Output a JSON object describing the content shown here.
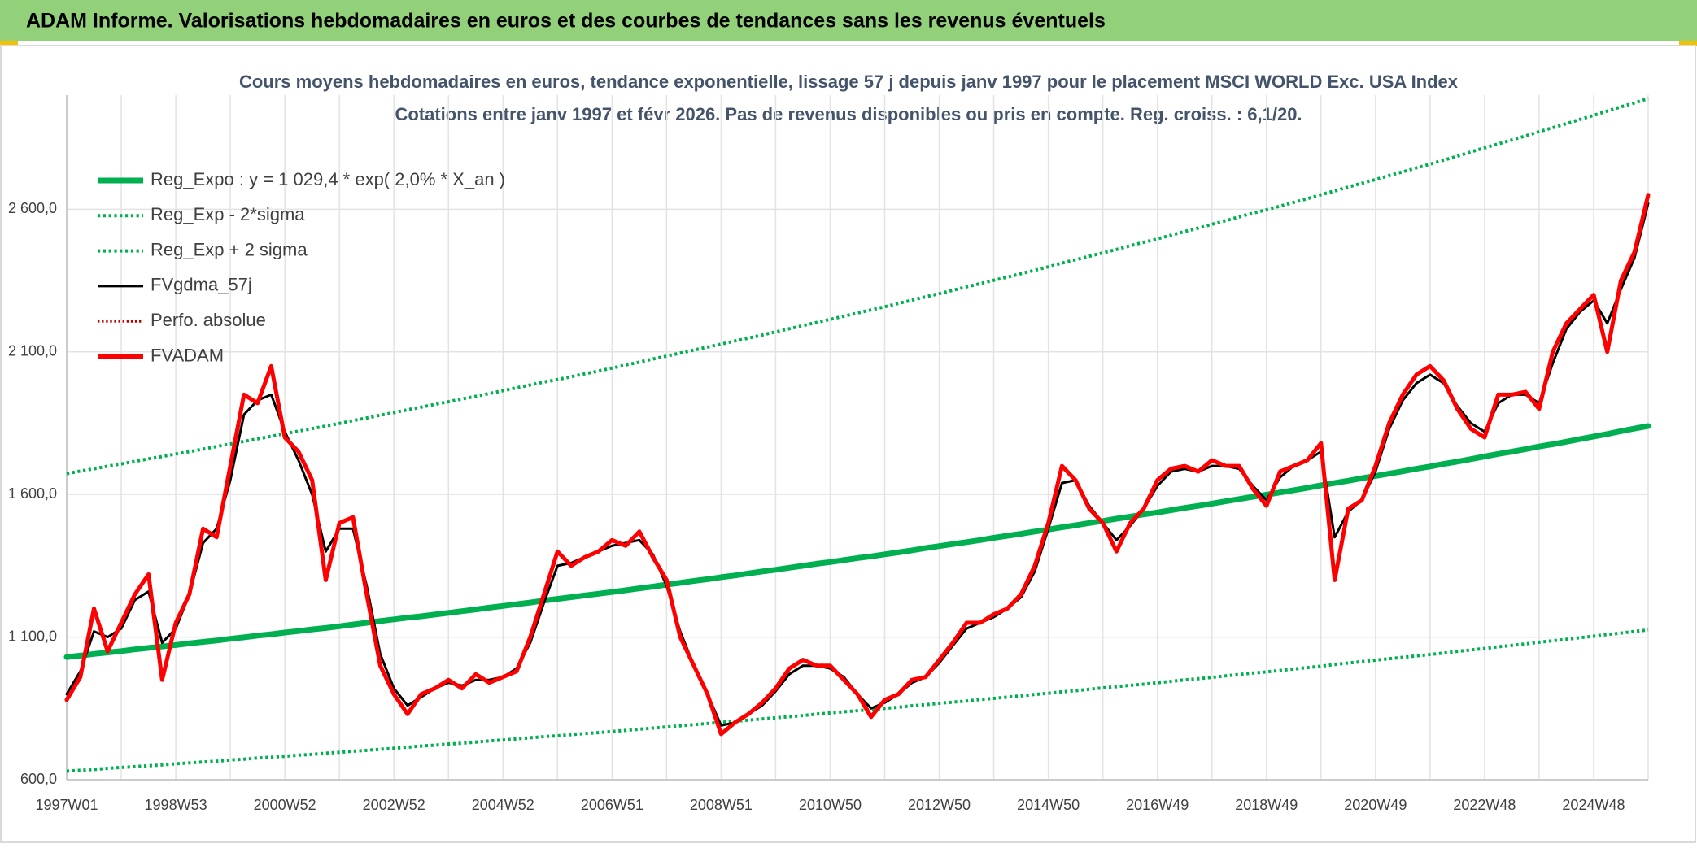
{
  "header": {
    "title": "ADAM Informe. Valorisations hebdomadaires en euros et des courbes de tendances sans les revenus éventuels"
  },
  "chart_data": {
    "type": "line",
    "title": "Cours moyens hebdomadaires en euros, tendance exponentielle, lissage 57 j depuis janv 1997 pour le placement MSCI WORLD Exc. USA Index",
    "subtitle": "Cotations entre janv 1997 et févr 2026. Pas de revenus disponibles ou pris en compte. Reg. croiss. : 6,1/20.",
    "categories": [
      "1997W01",
      null,
      null,
      null,
      null,
      null,
      null,
      null,
      "1998W53",
      null,
      null,
      null,
      null,
      null,
      null,
      null,
      "2000W52",
      null,
      null,
      null,
      null,
      null,
      null,
      null,
      "2002W52",
      null,
      null,
      null,
      null,
      null,
      null,
      null,
      "2004W52",
      null,
      null,
      null,
      null,
      null,
      null,
      null,
      "2006W51",
      null,
      null,
      null,
      null,
      null,
      null,
      null,
      "2008W51",
      null,
      null,
      null,
      null,
      null,
      null,
      null,
      "2010W50",
      null,
      null,
      null,
      null,
      null,
      null,
      null,
      "2012W50",
      null,
      null,
      null,
      null,
      null,
      null,
      null,
      "2014W50",
      null,
      null,
      null,
      null,
      null,
      null,
      null,
      "2016W49",
      null,
      null,
      null,
      null,
      null,
      null,
      null,
      "2018W49",
      null,
      null,
      null,
      null,
      null,
      null,
      null,
      "2020W49",
      null,
      null,
      null,
      null,
      null,
      null,
      null,
      "2022W48",
      null,
      null,
      null,
      null,
      null,
      null,
      null,
      "2024W48",
      null,
      null,
      null,
      null
    ],
    "ylim": [
      600,
      3000
    ],
    "yticks": [
      {
        "value": 600,
        "label": "600,0"
      },
      {
        "value": 1100,
        "label": "1 100,0"
      },
      {
        "value": 1600,
        "label": "1 600,0"
      },
      {
        "value": 2100,
        "label": "2 100,0"
      },
      {
        "value": 2600,
        "label": "2 600,0"
      }
    ],
    "grid": true,
    "legend": "upper left",
    "series": [
      {
        "name": "Reg_Expo : y = 1 029,4 * exp( 2,0% *  X_an )",
        "color": "#00b050",
        "style": "solid",
        "width": 7,
        "values": [
          1030,
          1035,
          1041,
          1046,
          1051,
          1057,
          1062,
          1067,
          1072,
          1078,
          1083,
          1088,
          1094,
          1099,
          1105,
          1110,
          1116,
          1121,
          1127,
          1132,
          1138,
          1144,
          1150,
          1156,
          1162,
          1168,
          1173,
          1179,
          1185,
          1191,
          1197,
          1203,
          1209,
          1215,
          1221,
          1228,
          1234,
          1240,
          1246,
          1252,
          1258,
          1264,
          1271,
          1277,
          1284,
          1290,
          1297,
          1303,
          1310,
          1316,
          1323,
          1330,
          1336,
          1343,
          1350,
          1357,
          1363,
          1370,
          1377,
          1383,
          1390,
          1397,
          1404,
          1412,
          1419,
          1426,
          1433,
          1440,
          1448,
          1455,
          1462,
          1470,
          1477,
          1485,
          1492,
          1500,
          1507,
          1515,
          1522,
          1530,
          1537,
          1545,
          1553,
          1560,
          1568,
          1576,
          1584,
          1592,
          1599,
          1607,
          1615,
          1623,
          1632,
          1640,
          1648,
          1657,
          1665,
          1673,
          1681,
          1690,
          1698,
          1707,
          1715,
          1724,
          1733,
          1742,
          1750,
          1759,
          1768,
          1776,
          1785,
          1794,
          1803,
          1812,
          1822,
          1831,
          1840
        ]
      },
      {
        "name": "Reg_Exp - 2*sigma",
        "color": "#00b050",
        "style": "dotted",
        "width": 4,
        "values": [
          630,
          633,
          636,
          640,
          643,
          646,
          649,
          652,
          656,
          659,
          662,
          665,
          669,
          672,
          676,
          679,
          682,
          686,
          689,
          693,
          696,
          700,
          703,
          707,
          710,
          714,
          718,
          721,
          725,
          728,
          732,
          736,
          739,
          743,
          747,
          751,
          754,
          758,
          762,
          765,
          769,
          773,
          777,
          781,
          785,
          789,
          793,
          797,
          801,
          805,
          809,
          813,
          817,
          821,
          825,
          830,
          834,
          838,
          842,
          846,
          850,
          854,
          859,
          863,
          868,
          872,
          876,
          881,
          885,
          890,
          894,
          899,
          903,
          908,
          912,
          917,
          922,
          926,
          931,
          935,
          940,
          945,
          950,
          954,
          959,
          964,
          969,
          974,
          978,
          983,
          988,
          993,
          998,
          1004,
          1009,
          1014,
          1019,
          1024,
          1029,
          1034,
          1039,
          1044,
          1050,
          1055,
          1060,
          1066,
          1071,
          1076,
          1082,
          1087,
          1092,
          1098,
          1103,
          1109,
          1114,
          1120,
          1125
        ]
      },
      {
        "name": "Reg_Exp + 2 sigma",
        "color": "#00b050",
        "style": "dotted",
        "width": 4,
        "values": [
          1673,
          1682,
          1690,
          1699,
          1707,
          1716,
          1725,
          1733,
          1742,
          1750,
          1759,
          1768,
          1777,
          1786,
          1795,
          1804,
          1813,
          1822,
          1831,
          1840,
          1849,
          1859,
          1868,
          1878,
          1887,
          1897,
          1906,
          1916,
          1925,
          1935,
          1944,
          1954,
          1964,
          1974,
          1984,
          1994,
          2003,
          2013,
          2023,
          2033,
          2043,
          2054,
          2064,
          2075,
          2085,
          2096,
          2106,
          2117,
          2127,
          2138,
          2148,
          2159,
          2170,
          2181,
          2192,
          2203,
          2214,
          2225,
          2236,
          2247,
          2258,
          2270,
          2281,
          2293,
          2304,
          2316,
          2328,
          2339,
          2351,
          2362,
          2374,
          2386,
          2398,
          2411,
          2423,
          2435,
          2447,
          2459,
          2472,
          2484,
          2496,
          2509,
          2522,
          2534,
          2547,
          2560,
          2573,
          2586,
          2598,
          2611,
          2624,
          2637,
          2651,
          2664,
          2678,
          2691,
          2704,
          2718,
          2731,
          2745,
          2758,
          2772,
          2786,
          2801,
          2815,
          2829,
          2843,
          2857,
          2872,
          2886,
          2900,
          2915,
          2929,
          2944,
          2959,
          2973,
          2988
        ]
      },
      {
        "name": "FVgdma_57j",
        "color": "#000000",
        "style": "solid",
        "width": 3,
        "values": [
          900,
          980,
          1120,
          1100,
          1130,
          1230,
          1260,
          1080,
          1130,
          1250,
          1430,
          1480,
          1650,
          1880,
          1930,
          1950,
          1820,
          1720,
          1600,
          1400,
          1480,
          1480,
          1280,
          1040,
          920,
          860,
          890,
          920,
          940,
          930,
          950,
          950,
          960,
          990,
          1080,
          1220,
          1350,
          1360,
          1380,
          1400,
          1420,
          1430,
          1440,
          1390,
          1280,
          1120,
          1000,
          900,
          790,
          800,
          830,
          860,
          910,
          970,
          1000,
          1000,
          990,
          960,
          900,
          850,
          870,
          900,
          940,
          960,
          1010,
          1070,
          1130,
          1150,
          1170,
          1200,
          1240,
          1330,
          1480,
          1640,
          1650,
          1560,
          1500,
          1440,
          1490,
          1550,
          1630,
          1680,
          1690,
          1680,
          1700,
          1700,
          1690,
          1630,
          1580,
          1660,
          1700,
          1720,
          1750,
          1450,
          1540,
          1580,
          1680,
          1830,
          1930,
          1990,
          2020,
          1990,
          1910,
          1850,
          1820,
          1920,
          1950,
          1950,
          1920,
          2060,
          2180,
          2240,
          2280,
          2200,
          2320,
          2430,
          2620
        ]
      },
      {
        "name": "Perfo. absolue",
        "color": "#c00000",
        "style": "dotted",
        "width": 3,
        "values": [
          null,
          null,
          null,
          null,
          null,
          null,
          null,
          null,
          null,
          null,
          null,
          null,
          null,
          null,
          null,
          null,
          null,
          null,
          null,
          null,
          null,
          null,
          null,
          null,
          null,
          null,
          null,
          null,
          null,
          null,
          null,
          null,
          null,
          null,
          null,
          null,
          null,
          null,
          null,
          null,
          null,
          null,
          null,
          null,
          null,
          null,
          null,
          null,
          null,
          null,
          null,
          null,
          null,
          null,
          null,
          null,
          null,
          null,
          null,
          null,
          null,
          null,
          null,
          null,
          null,
          null,
          null,
          null,
          null,
          null,
          null,
          null,
          null,
          null,
          null,
          null,
          null,
          null,
          null,
          null,
          null,
          null,
          null,
          null,
          null,
          null,
          null,
          null,
          null,
          null,
          null,
          null,
          null,
          null,
          null,
          null,
          null,
          null,
          null,
          null,
          null,
          null,
          null,
          null,
          null,
          null,
          null,
          null,
          null,
          null,
          null,
          null,
          null,
          null,
          null,
          null,
          null
        ]
      },
      {
        "name": "FVADAM",
        "color": "#ff0000",
        "style": "solid",
        "width": 5,
        "values": [
          880,
          960,
          1200,
          1050,
          1150,
          1250,
          1320,
          950,
          1150,
          1250,
          1480,
          1450,
          1700,
          1950,
          1920,
          2050,
          1800,
          1750,
          1650,
          1300,
          1500,
          1520,
          1250,
          1000,
          900,
          830,
          900,
          920,
          950,
          920,
          970,
          940,
          960,
          980,
          1100,
          1250,
          1400,
          1350,
          1380,
          1400,
          1440,
          1420,
          1470,
          1380,
          1300,
          1100,
          1000,
          900,
          760,
          800,
          830,
          870,
          920,
          990,
          1020,
          1000,
          1000,
          950,
          900,
          820,
          880,
          900,
          950,
          960,
          1020,
          1080,
          1150,
          1150,
          1180,
          1200,
          1250,
          1350,
          1500,
          1700,
          1650,
          1550,
          1500,
          1400,
          1500,
          1550,
          1650,
          1690,
          1700,
          1680,
          1720,
          1700,
          1700,
          1620,
          1560,
          1680,
          1700,
          1720,
          1780,
          1300,
          1550,
          1580,
          1700,
          1850,
          1950,
          2020,
          2050,
          2000,
          1900,
          1830,
          1800,
          1950,
          1950,
          1960,
          1900,
          2100,
          2200,
          2250,
          2300,
          2100,
          2350,
          2450,
          2650
        ]
      }
    ]
  }
}
